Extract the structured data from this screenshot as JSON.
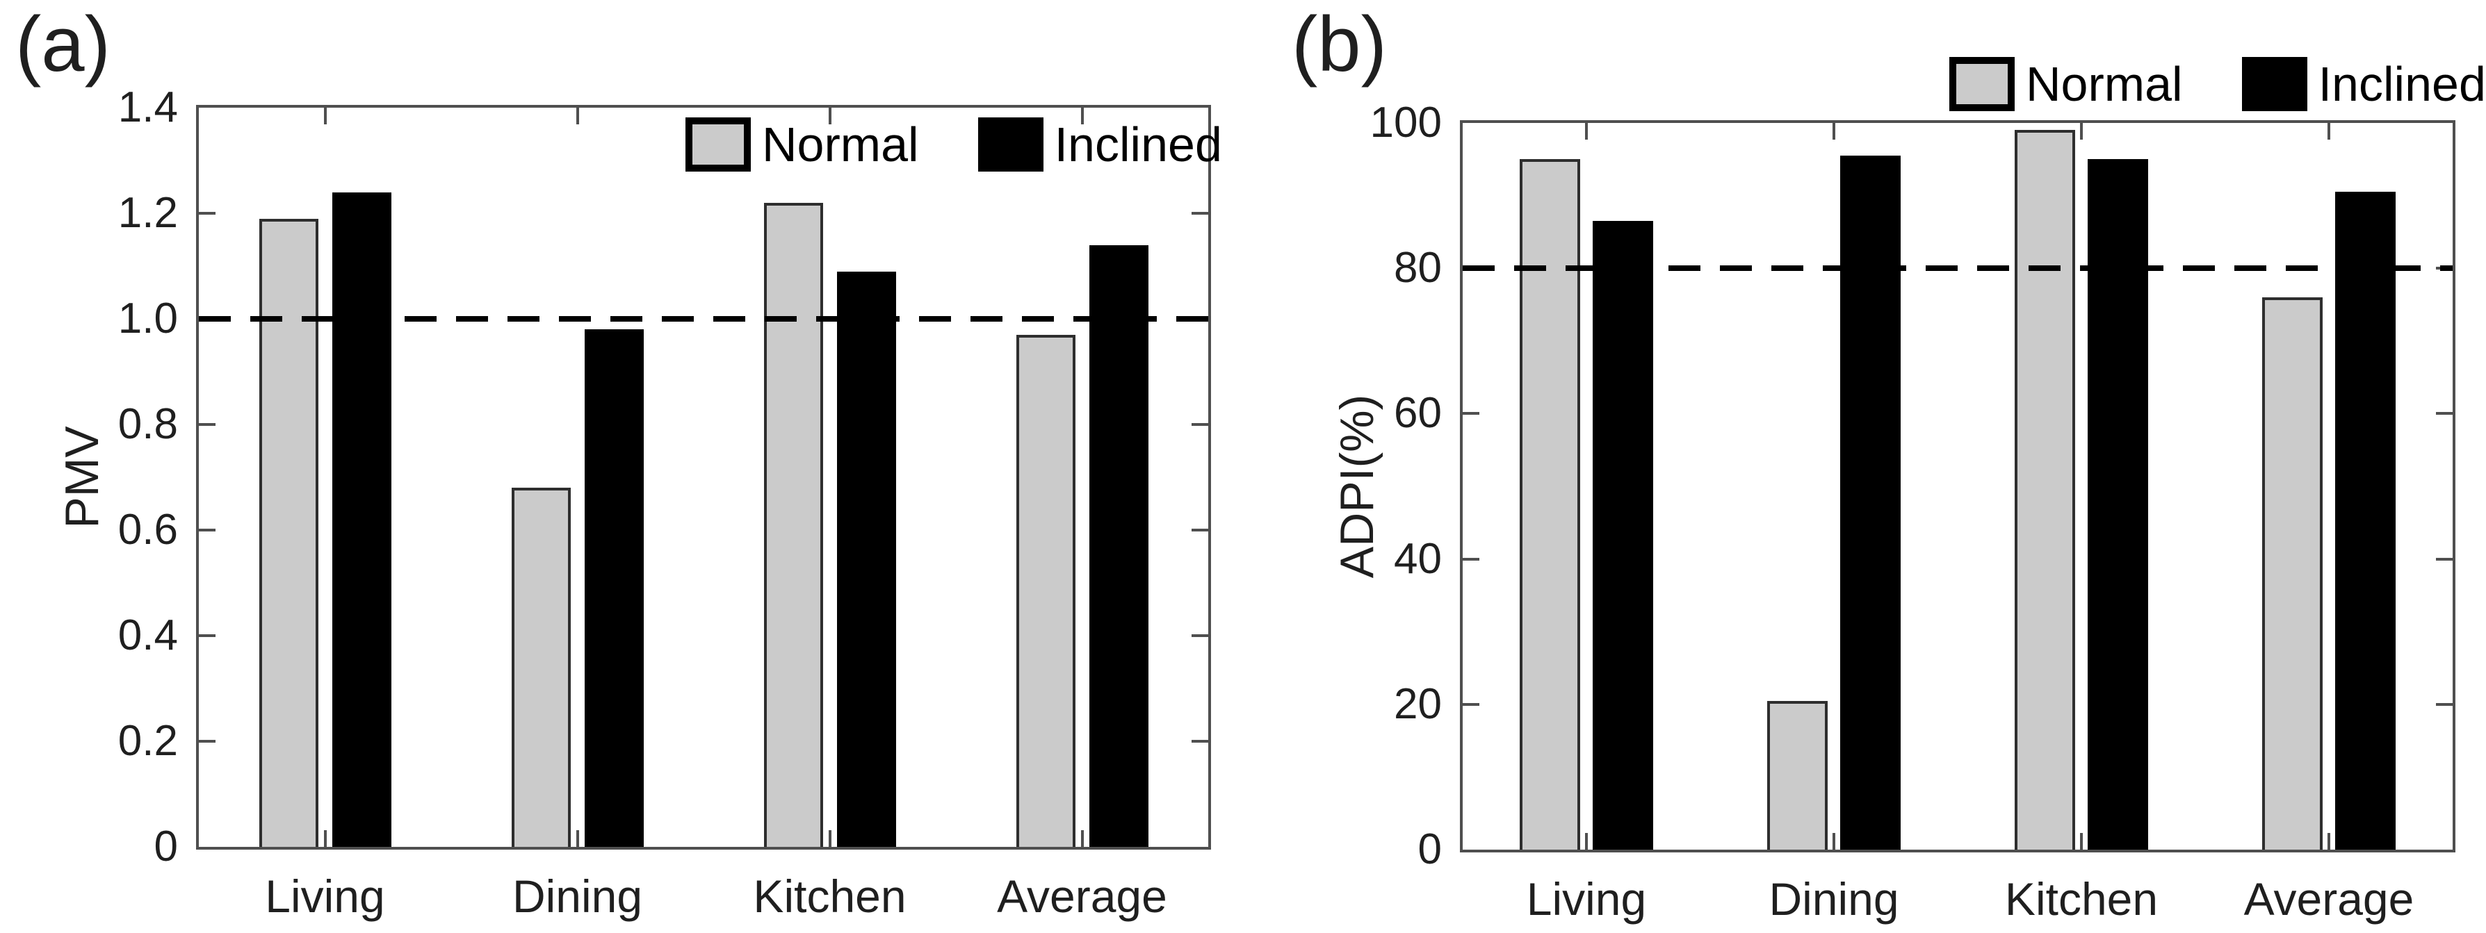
{
  "legend": {
    "normal_label": "Normal",
    "inclined_label": "Inclined"
  },
  "colors": {
    "normal_fill": "#cbcbcb",
    "normal_border": "#2e2e2e",
    "inclined_fill": "#000000",
    "axis": "#4f4f4f",
    "reference_line": "#000000",
    "text": "#1f1f1f"
  },
  "chart_data": [
    {
      "type": "bar",
      "panel": "(a)",
      "title": "",
      "categories": [
        "Living",
        "Dining",
        "Kitchen",
        "Average"
      ],
      "series": [
        {
          "name": "Normal",
          "values": [
            1.19,
            0.68,
            1.22,
            0.97
          ]
        },
        {
          "name": "Inclined",
          "values": [
            1.24,
            0.98,
            1.09,
            1.14
          ]
        }
      ],
      "xlabel": "",
      "ylabel": "PMV",
      "ylim": [
        0,
        1.4
      ],
      "ytick_values": [
        0,
        0.2,
        0.4,
        0.6,
        0.8,
        1.0,
        1.2,
        1.4
      ],
      "ytick_labels": [
        "0",
        "0.2",
        "0.4",
        "0.6",
        "0.8",
        "1.0",
        "1.2",
        "1.4"
      ],
      "reference_line": 1.0,
      "reference_line_style": "dashed",
      "grid": false,
      "legend_position": "inside-top-right"
    },
    {
      "type": "bar",
      "panel": "(b)",
      "title": "",
      "categories": [
        "Living",
        "Dining",
        "Kitchen",
        "Average"
      ],
      "series": [
        {
          "name": "Normal",
          "values": [
            95,
            20.5,
            99,
            76
          ]
        },
        {
          "name": "Inclined",
          "values": [
            86.5,
            95.5,
            95,
            90.5
          ]
        }
      ],
      "xlabel": "",
      "ylabel": "ADPI(%)",
      "ylim": [
        0,
        100
      ],
      "ytick_values": [
        0,
        20,
        40,
        60,
        80,
        100
      ],
      "ytick_labels": [
        "0",
        "20",
        "40",
        "60",
        "80",
        "100"
      ],
      "reference_line": 80,
      "reference_line_style": "dashed",
      "grid": false,
      "legend_position": "above-top-right"
    }
  ]
}
